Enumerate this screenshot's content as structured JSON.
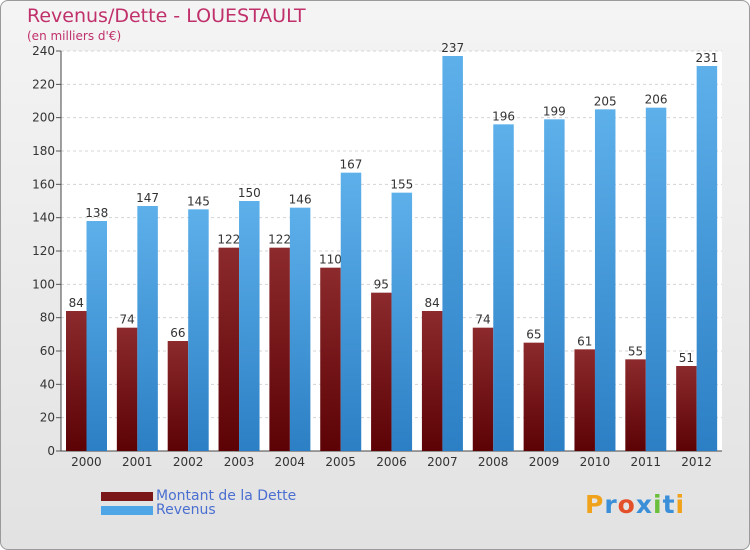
{
  "chart_data": {
    "type": "bar",
    "title": "Revenus/Dette - LOUESTAULT",
    "subtitle": "(en milliers d'€)",
    "categories": [
      "2000",
      "2001",
      "2002",
      "2003",
      "2004",
      "2005",
      "2006",
      "2007",
      "2008",
      "2009",
      "2010",
      "2011",
      "2012"
    ],
    "series": [
      {
        "name": "Montant de la Dette",
        "color": "#7a1518",
        "values": [
          84,
          74,
          66,
          122,
          122,
          110,
          95,
          84,
          74,
          65,
          61,
          55,
          51
        ]
      },
      {
        "name": "Revenus",
        "color": "#4ea6e6",
        "values": [
          138,
          147,
          145,
          150,
          146,
          167,
          155,
          237,
          196,
          199,
          205,
          206,
          231
        ]
      }
    ],
    "ylim": [
      0,
      240
    ],
    "yticks": [
      0,
      20,
      40,
      60,
      80,
      100,
      120,
      140,
      160,
      180,
      200,
      220,
      240
    ],
    "grid": true,
    "legend": "bottom-left"
  },
  "logo": {
    "text": "Proxiti",
    "colors": [
      "#f0a21a",
      "#3a8fd8",
      "#e4502a",
      "#3a8fd8",
      "#6bbf3a",
      "#3a8fd8",
      "#f0a21a"
    ]
  }
}
